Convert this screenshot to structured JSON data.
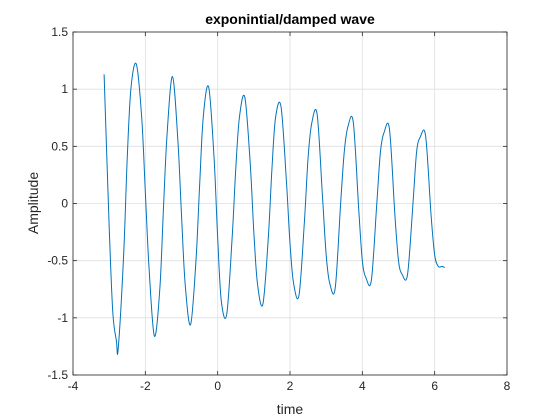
{
  "chart_data": {
    "type": "line",
    "title": "exponintial/damped wave",
    "xlabel": "time",
    "ylabel": "Amplitude",
    "xlim": [
      -4,
      8
    ],
    "ylim": [
      -1.5,
      1.5
    ],
    "xticks": [
      -4,
      -2,
      0,
      2,
      4,
      6,
      8
    ],
    "yticks": [
      -1.5,
      -1,
      -0.5,
      0,
      0.5,
      1,
      1.5
    ],
    "xtick_labels": [
      "-4",
      "-2",
      "0",
      "2",
      "4",
      "6",
      "8"
    ],
    "ytick_labels": [
      "-1.5",
      "-1",
      "-0.5",
      "0",
      "0.5",
      "1",
      "1.5"
    ],
    "grid": true,
    "box": true,
    "series": [
      {
        "color": "#0072bd",
        "x": [
          -3.14,
          -3.0,
          -2.9,
          -2.8,
          -2.75,
          -2.6,
          -2.5,
          -2.4,
          -2.25,
          -2.1,
          -2.0,
          -1.9,
          -1.75,
          -1.6,
          -1.5,
          -1.4,
          -1.25,
          -1.1,
          -1.0,
          -0.9,
          -0.75,
          -0.6,
          -0.5,
          -0.4,
          -0.25,
          -0.1,
          0.0,
          0.1,
          0.25,
          0.4,
          0.5,
          0.6,
          0.75,
          0.9,
          1.0,
          1.1,
          1.25,
          1.4,
          1.5,
          1.6,
          1.75,
          1.9,
          2.0,
          2.1,
          2.25,
          2.4,
          2.5,
          2.6,
          2.75,
          2.9,
          3.0,
          3.1,
          3.25,
          3.4,
          3.5,
          3.6,
          3.75,
          3.9,
          4.0,
          4.1,
          4.25,
          4.4,
          4.5,
          4.6,
          4.75,
          4.9,
          5.0,
          5.1,
          5.25,
          5.4,
          5.5,
          5.6,
          5.75,
          5.9,
          6.0,
          6.1,
          6.2,
          6.28
        ],
        "y": [
          1.13,
          -0.2,
          -0.95,
          -1.2,
          -1.27,
          -0.45,
          0.4,
          1.0,
          1.22,
          0.75,
          0.1,
          -0.55,
          -1.16,
          -0.75,
          -0.05,
          0.6,
          1.11,
          0.55,
          -0.1,
          -0.7,
          -1.06,
          -0.5,
          0.15,
          0.75,
          1.02,
          0.4,
          -0.3,
          -0.85,
          -0.97,
          -0.3,
          0.3,
          0.75,
          0.93,
          0.35,
          -0.25,
          -0.7,
          -0.88,
          -0.3,
          0.3,
          0.75,
          0.85,
          0.2,
          -0.35,
          -0.7,
          -0.8,
          -0.15,
          0.4,
          0.7,
          0.78,
          0.05,
          -0.45,
          -0.7,
          -0.74,
          0.0,
          0.45,
          0.67,
          0.71,
          -0.05,
          -0.5,
          -0.65,
          -0.67,
          0.0,
          0.45,
          0.62,
          0.65,
          -0.1,
          -0.5,
          -0.62,
          -0.62,
          0.0,
          0.45,
          0.58,
          0.59,
          -0.1,
          -0.45,
          -0.55,
          -0.55,
          -0.56
        ]
      }
    ]
  }
}
